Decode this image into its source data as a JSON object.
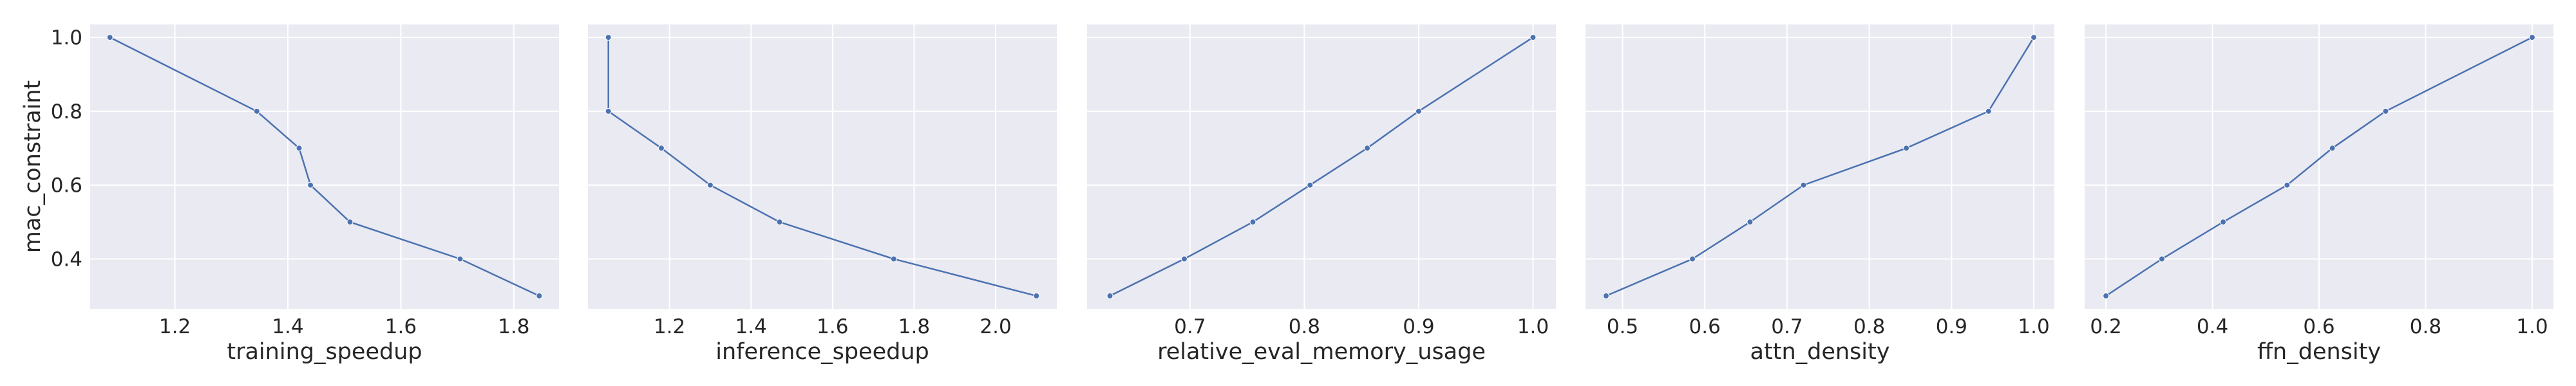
{
  "figure": {
    "ylabel": "mac_constraint",
    "colors": {
      "panel_bg": "#EAEAF2",
      "grid": "#FFFFFF",
      "line": "#4C72B0",
      "text": "#262626"
    }
  },
  "chart_data": [
    {
      "type": "line",
      "xlabel": "training_speedup",
      "ylabel": "mac_constraint",
      "xticks": [
        "1.2",
        "1.4",
        "1.6",
        "1.8"
      ],
      "yticks": [
        "0.4",
        "0.6",
        "0.8",
        "1.0"
      ],
      "xlim": [
        1.05,
        1.88
      ],
      "ylim": [
        0.265,
        1.035
      ],
      "grid": true,
      "markers": true,
      "x": [
        1.085,
        1.345,
        1.42,
        1.44,
        1.51,
        1.705,
        1.845
      ],
      "y": [
        1.0,
        0.8,
        0.7,
        0.6,
        0.5,
        0.4,
        0.3
      ]
    },
    {
      "type": "line",
      "xlabel": "inference_speedup",
      "ylabel": "mac_constraint",
      "xticks": [
        "1.2",
        "1.4",
        "1.6",
        "1.8",
        "2.0"
      ],
      "yticks": [
        "0.4",
        "0.6",
        "0.8",
        "1.0"
      ],
      "xlim": [
        1.0,
        2.15
      ],
      "ylim": [
        0.265,
        1.035
      ],
      "grid": true,
      "markers": true,
      "x": [
        1.05,
        1.05,
        1.18,
        1.3,
        1.47,
        1.75,
        2.1
      ],
      "y": [
        1.0,
        0.8,
        0.7,
        0.6,
        0.5,
        0.4,
        0.3
      ]
    },
    {
      "type": "line",
      "xlabel": "relative_eval_memory_usage",
      "ylabel": "mac_constraint",
      "xticks": [
        "0.7",
        "0.8",
        "0.9",
        "1.0"
      ],
      "yticks": [
        "0.4",
        "0.6",
        "0.8",
        "1.0"
      ],
      "xlim": [
        0.61,
        1.02
      ],
      "ylim": [
        0.265,
        1.035
      ],
      "grid": true,
      "markers": true,
      "x": [
        0.63,
        0.695,
        0.755,
        0.805,
        0.855,
        0.9,
        1.0
      ],
      "y": [
        0.3,
        0.4,
        0.5,
        0.6,
        0.7,
        0.8,
        1.0
      ]
    },
    {
      "type": "line",
      "xlabel": "attn_density",
      "ylabel": "mac_constraint",
      "xticks": [
        "0.5",
        "0.6",
        "0.7",
        "0.8",
        "0.9",
        "1.0"
      ],
      "yticks": [
        "0.4",
        "0.6",
        "0.8",
        "1.0"
      ],
      "xlim": [
        0.455,
        1.025
      ],
      "ylim": [
        0.265,
        1.035
      ],
      "grid": true,
      "markers": true,
      "x": [
        0.48,
        0.585,
        0.655,
        0.72,
        0.845,
        0.945,
        1.0
      ],
      "y": [
        0.3,
        0.4,
        0.5,
        0.6,
        0.7,
        0.8,
        1.0
      ]
    },
    {
      "type": "line",
      "xlabel": "ffn_density",
      "ylabel": "mac_constraint",
      "xticks": [
        "0.2",
        "0.4",
        "0.6",
        "0.8",
        "1.0"
      ],
      "yticks": [
        "0.4",
        "0.6",
        "0.8",
        "1.0"
      ],
      "xlim": [
        0.16,
        1.04
      ],
      "ylim": [
        0.265,
        1.035
      ],
      "grid": true,
      "markers": true,
      "x": [
        0.2,
        0.305,
        0.42,
        0.54,
        0.625,
        0.725,
        1.0
      ],
      "y": [
        0.3,
        0.4,
        0.5,
        0.6,
        0.7,
        0.8,
        1.0
      ]
    }
  ]
}
